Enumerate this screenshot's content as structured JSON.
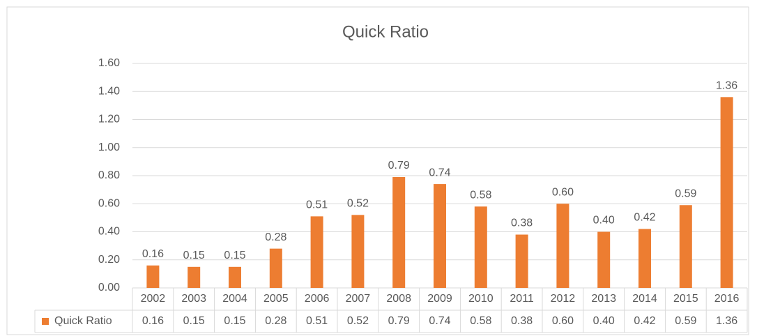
{
  "chart_data": {
    "type": "bar",
    "title": "Quick Ratio",
    "categories": [
      "2002",
      "2003",
      "2004",
      "2005",
      "2006",
      "2007",
      "2008",
      "2009",
      "2010",
      "2011",
      "2012",
      "2013",
      "2014",
      "2015",
      "2016"
    ],
    "series": [
      {
        "name": "Quick Ratio",
        "color": "#ed7d31",
        "values": [
          0.16,
          0.15,
          0.15,
          0.28,
          0.51,
          0.52,
          0.79,
          0.74,
          0.58,
          0.38,
          0.6,
          0.4,
          0.42,
          0.59,
          1.36
        ],
        "value_labels": [
          "0.16",
          "0.15",
          "0.15",
          "0.28",
          "0.51",
          "0.52",
          "0.79",
          "0.74",
          "0.58",
          "0.38",
          "0.60",
          "0.40",
          "0.42",
          "0.59",
          "1.36"
        ]
      }
    ],
    "ylim": [
      0,
      1.6
    ],
    "yticks": [
      {
        "value": 0,
        "label": "0.00"
      },
      {
        "value": 0.2,
        "label": "0.20"
      },
      {
        "value": 0.4,
        "label": "0.40"
      },
      {
        "value": 0.6,
        "label": "0.60"
      },
      {
        "value": 0.8,
        "label": "0.80"
      },
      {
        "value": 1.0,
        "label": "1.00"
      },
      {
        "value": 1.2,
        "label": "1.20"
      },
      {
        "value": 1.4,
        "label": "1.40"
      },
      {
        "value": 1.6,
        "label": "1.60"
      }
    ],
    "grid": true,
    "data_table": true
  }
}
